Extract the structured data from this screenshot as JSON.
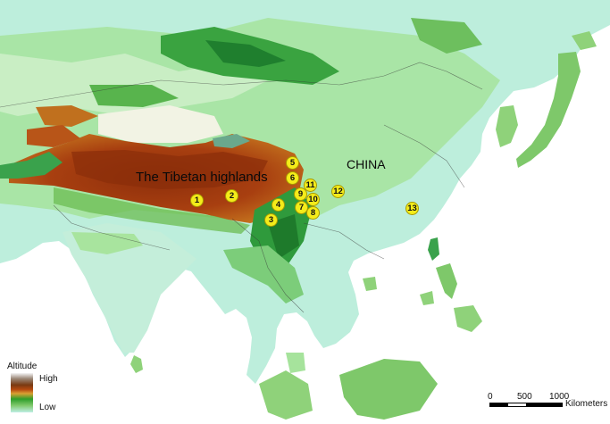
{
  "map": {
    "region_labels": {
      "tibet": "The Tibetan highlands",
      "china": "CHINA"
    },
    "sites": [
      {
        "id": "1"
      },
      {
        "id": "2"
      },
      {
        "id": "3"
      },
      {
        "id": "4"
      },
      {
        "id": "5"
      },
      {
        "id": "6"
      },
      {
        "id": "7"
      },
      {
        "id": "8"
      },
      {
        "id": "9"
      },
      {
        "id": "10"
      },
      {
        "id": "11"
      },
      {
        "id": "12"
      },
      {
        "id": "13"
      }
    ],
    "marker_color": "#f4ec1a"
  },
  "legend": {
    "title": "Altitude",
    "high": "High",
    "low": "Low"
  },
  "scale": {
    "ticks": [
      "0",
      "500",
      "1000"
    ],
    "unit": "Kilometers"
  },
  "colors": {
    "sea": "#ffffff",
    "lowland": "#b8ecd9",
    "mid": "#8fd27a",
    "forest": "#2e9b3a",
    "plateau": "#a33a0e",
    "peak": "#6b2a0c"
  }
}
